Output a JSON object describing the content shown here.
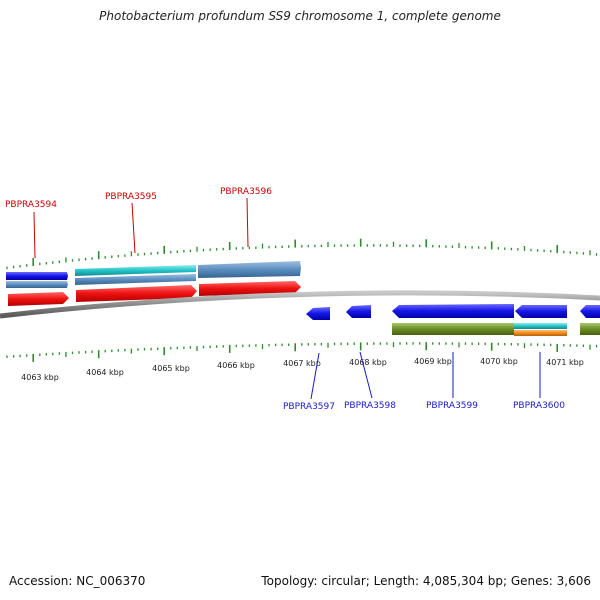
{
  "title": "Photobacterium profundum SS9 chromosome 1, complete genome",
  "footer": {
    "accession": "Accession: NC_006370",
    "summary": "Topology: circular; Length: 4,085,304 bp; Genes: 3,606"
  },
  "colors": {
    "backbone": "#8a8a8a",
    "tick": "#2e8b2e",
    "top_label": "#cc0000",
    "bottom_label": "#1a1acc",
    "gene_red": "#ee1111",
    "gene_blue": "#1515e6",
    "gene_cyan": "#22c4c8",
    "gene_steel": "#5b8ec0",
    "gene_olive": "#6b8e23",
    "gene_orange": "#f08a1c"
  },
  "scale_labels": [
    "4063 kbp",
    "4064 kbp",
    "4065 kbp",
    "4066 kbp",
    "4067 kbp",
    "4068 kbp",
    "4069 kbp",
    "4070 kbp",
    "4071 kbp"
  ],
  "top_gene_labels": [
    "PBPRA3594",
    "PBPRA3595",
    "PBPRA3596"
  ],
  "bottom_gene_labels": [
    "PBPRA3597",
    "PBPRA3598",
    "PBPRA3599",
    "PBPRA3600"
  ]
}
